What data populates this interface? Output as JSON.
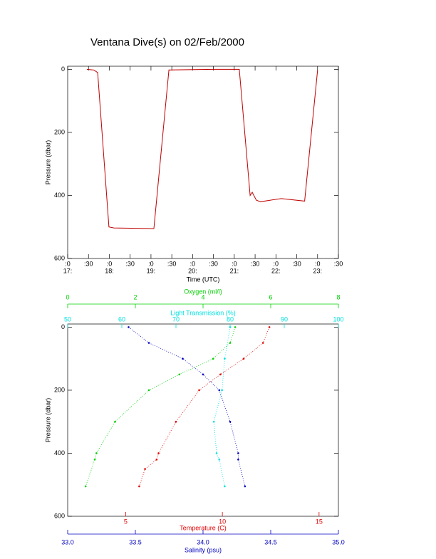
{
  "chart_data": [
    {
      "type": "line",
      "title": "Ventana Dive(s) on 02/Feb/2000",
      "xlabel": "Time (UTC)",
      "ylabel": "Pressure (dbar)",
      "color": "#c00000",
      "xlim": [
        17,
        23.5
      ],
      "ylim": [
        -10,
        600
      ],
      "yticks": [
        0,
        200,
        400,
        600
      ],
      "xticks": [
        {
          "value": 17,
          "label": ":0",
          "sublabel": "17:"
        },
        {
          "value": 17.5,
          "label": ":30"
        },
        {
          "value": 18,
          "label": ":0",
          "sublabel": "18:"
        },
        {
          "value": 18.5,
          "label": ":30"
        },
        {
          "value": 19,
          "label": ":0",
          "sublabel": "19:"
        },
        {
          "value": 19.5,
          "label": ":30"
        },
        {
          "value": 20,
          "label": ":0",
          "sublabel": "20:"
        },
        {
          "value": 20.5,
          "label": ":30"
        },
        {
          "value": 21,
          "label": ":0",
          "sublabel": "21:"
        },
        {
          "value": 21.5,
          "label": ":30"
        },
        {
          "value": 22,
          "label": ":0",
          "sublabel": "22:"
        },
        {
          "value": 22.5,
          "label": ":30"
        },
        {
          "value": 23,
          "label": ":0",
          "sublabel": "23:"
        },
        {
          "value": 23.5,
          "label": ":30"
        }
      ],
      "x": [
        17.46,
        17.63,
        17.72,
        17.99,
        18.11,
        19.07,
        19.43,
        20.5,
        21.12,
        21.38,
        21.43,
        21.53,
        21.63,
        21.87,
        22.13,
        22.69,
        23.0
      ],
      "values": [
        0,
        2,
        10,
        500,
        503,
        505,
        2,
        0,
        0,
        400,
        390,
        415,
        420,
        415,
        410,
        418,
        2
      ]
    },
    {
      "type": "scatter",
      "ylabel": "Pressure (dbar)",
      "ylim": [
        -10,
        600
      ],
      "yticks": [
        0,
        200,
        400,
        600
      ],
      "axes": [
        {
          "label": "Temperature (C)",
          "color": "#e00000",
          "lim": [
            2,
            16
          ],
          "ticks": [
            5,
            10,
            15
          ]
        },
        {
          "label": "Salinity (psu)",
          "color": "#0000c0",
          "lim": [
            33.0,
            35.0
          ],
          "ticks": [
            {
              "value": 33.0,
              "label": "33.0"
            },
            {
              "value": 33.5,
              "label": "33.5"
            },
            {
              "value": 34.0,
              "label": "34.0"
            },
            {
              "value": 34.5,
              "label": "34.5"
            },
            {
              "value": 35.0,
              "label": "35.0"
            }
          ]
        },
        {
          "label": "Oxygen (ml/l)",
          "color": "#00d000",
          "lim": [
            0,
            8
          ],
          "ticks": [
            0,
            2,
            4,
            6,
            8
          ]
        },
        {
          "label": "Light Transmission (%)",
          "color": "#00e0e0",
          "lim": [
            50,
            100
          ],
          "ticks": [
            50,
            60,
            70,
            80,
            90,
            100
          ]
        }
      ],
      "series": [
        {
          "axis": 0,
          "color": "#e00000",
          "x": [
            12.43,
            12.1,
            11.1,
            9.9,
            8.8,
            7.6,
            6.7,
            6.6,
            6.0,
            5.7
          ],
          "values": [
            0,
            50,
            100,
            150,
            200,
            300,
            400,
            420,
            450,
            505
          ]
        },
        {
          "axis": 1,
          "color": "#0000c0",
          "x": [
            33.45,
            33.6,
            33.85,
            34.0,
            34.12,
            34.2,
            34.26,
            34.26,
            34.31
          ],
          "values": [
            0,
            50,
            100,
            150,
            200,
            300,
            400,
            420,
            505
          ]
        },
        {
          "axis": 2,
          "color": "#00d000",
          "x": [
            4.95,
            4.8,
            4.3,
            3.3,
            2.4,
            1.4,
            0.85,
            0.8,
            0.53
          ],
          "values": [
            0,
            50,
            100,
            150,
            200,
            300,
            400,
            420,
            505
          ]
        },
        {
          "axis": 3,
          "color": "#00e0e0",
          "x": [
            80,
            79,
            78.5,
            77,
            77.5,
            78,
            79
          ],
          "values": [
            0,
            100,
            200,
            300,
            400,
            420,
            505
          ]
        }
      ]
    }
  ]
}
